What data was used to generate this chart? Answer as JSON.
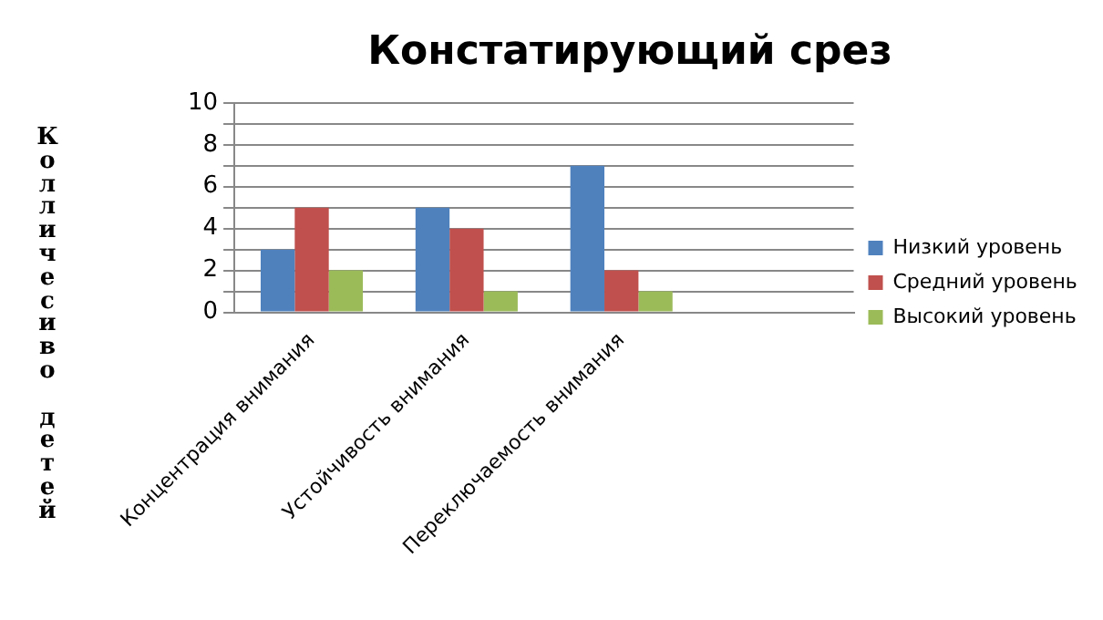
{
  "chart_data": {
    "type": "bar",
    "title": "Констатирующий срез",
    "ylabel": "Колличесиво детей",
    "categories": [
      "Концентрация внимания",
      "Устойчивость внимания",
      "Переключаемость внимания",
      null
    ],
    "series": [
      {
        "name": "Низкий уровень",
        "color": "#4f81bd",
        "values": [
          3,
          5,
          7,
          null
        ]
      },
      {
        "name": "Средний уровень",
        "color": "#c0504d",
        "values": [
          5,
          4,
          2,
          null
        ]
      },
      {
        "name": "Высокий уровень",
        "color": "#9bbb59",
        "values": [
          2,
          1,
          1,
          null
        ]
      }
    ],
    "ylim": [
      0,
      10
    ],
    "yticks": [
      0,
      {
        "value": 1,
        "label": null
      },
      2,
      {
        "value": 3,
        "label": null
      },
      4,
      {
        "value": 5,
        "label": null
      },
      6,
      {
        "value": 7,
        "label": null
      },
      8,
      {
        "value": 9,
        "label": null
      },
      10
    ],
    "grid": "y",
    "legend": "right"
  }
}
